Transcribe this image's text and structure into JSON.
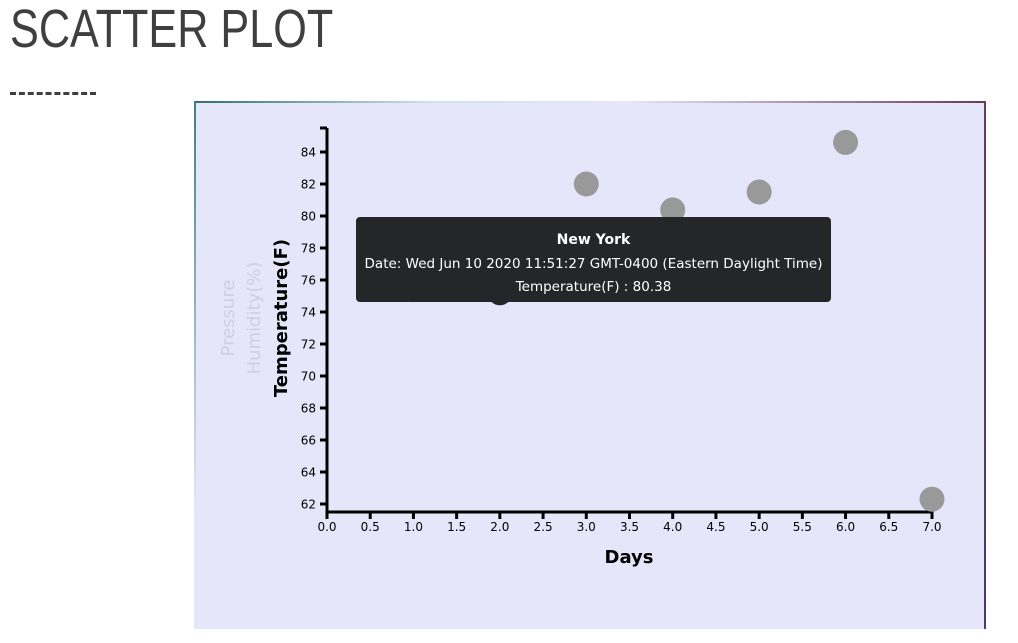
{
  "page": {
    "title": "SCATTER PLOT"
  },
  "chart_data": {
    "type": "scatter",
    "title": "",
    "xlabel": "Days",
    "ylabel": "Temperature(F)",
    "hidden_ylabels": [
      "Humidity(%)",
      "Pressure"
    ],
    "xlim": [
      0,
      7
    ],
    "ylim": [
      61.5,
      85.5
    ],
    "xticks": [
      "0.0",
      "0.5",
      "1.0",
      "1.5",
      "2.0",
      "2.5",
      "3.0",
      "3.5",
      "4.0",
      "4.5",
      "5.0",
      "5.5",
      "6.0",
      "6.5",
      "7.0"
    ],
    "yticks": [
      "62",
      "64",
      "66",
      "68",
      "70",
      "72",
      "74",
      "76",
      "78",
      "80",
      "82",
      "84"
    ],
    "grid": false,
    "legend": "none",
    "point_color": "#999999",
    "highlight_color": "#262626",
    "points": [
      {
        "x": 1,
        "y": 75.4,
        "highlighted": true
      },
      {
        "x": 2,
        "y": 75.2,
        "highlighted": true
      },
      {
        "x": 3,
        "y": 82.0,
        "highlighted": false
      },
      {
        "x": 4,
        "y": 80.38,
        "highlighted": false
      },
      {
        "x": 5,
        "y": 81.5,
        "highlighted": false
      },
      {
        "x": 6,
        "y": 84.6,
        "highlighted": false
      },
      {
        "x": 7,
        "y": 62.3,
        "highlighted": false
      }
    ]
  },
  "tooltip": {
    "title": "New York",
    "date_line": "Date: Wed Jun 10 2020 11:51:27 GMT-0400 (Eastern Daylight Time)",
    "value_line": "Temperature(F) : 80.38"
  }
}
